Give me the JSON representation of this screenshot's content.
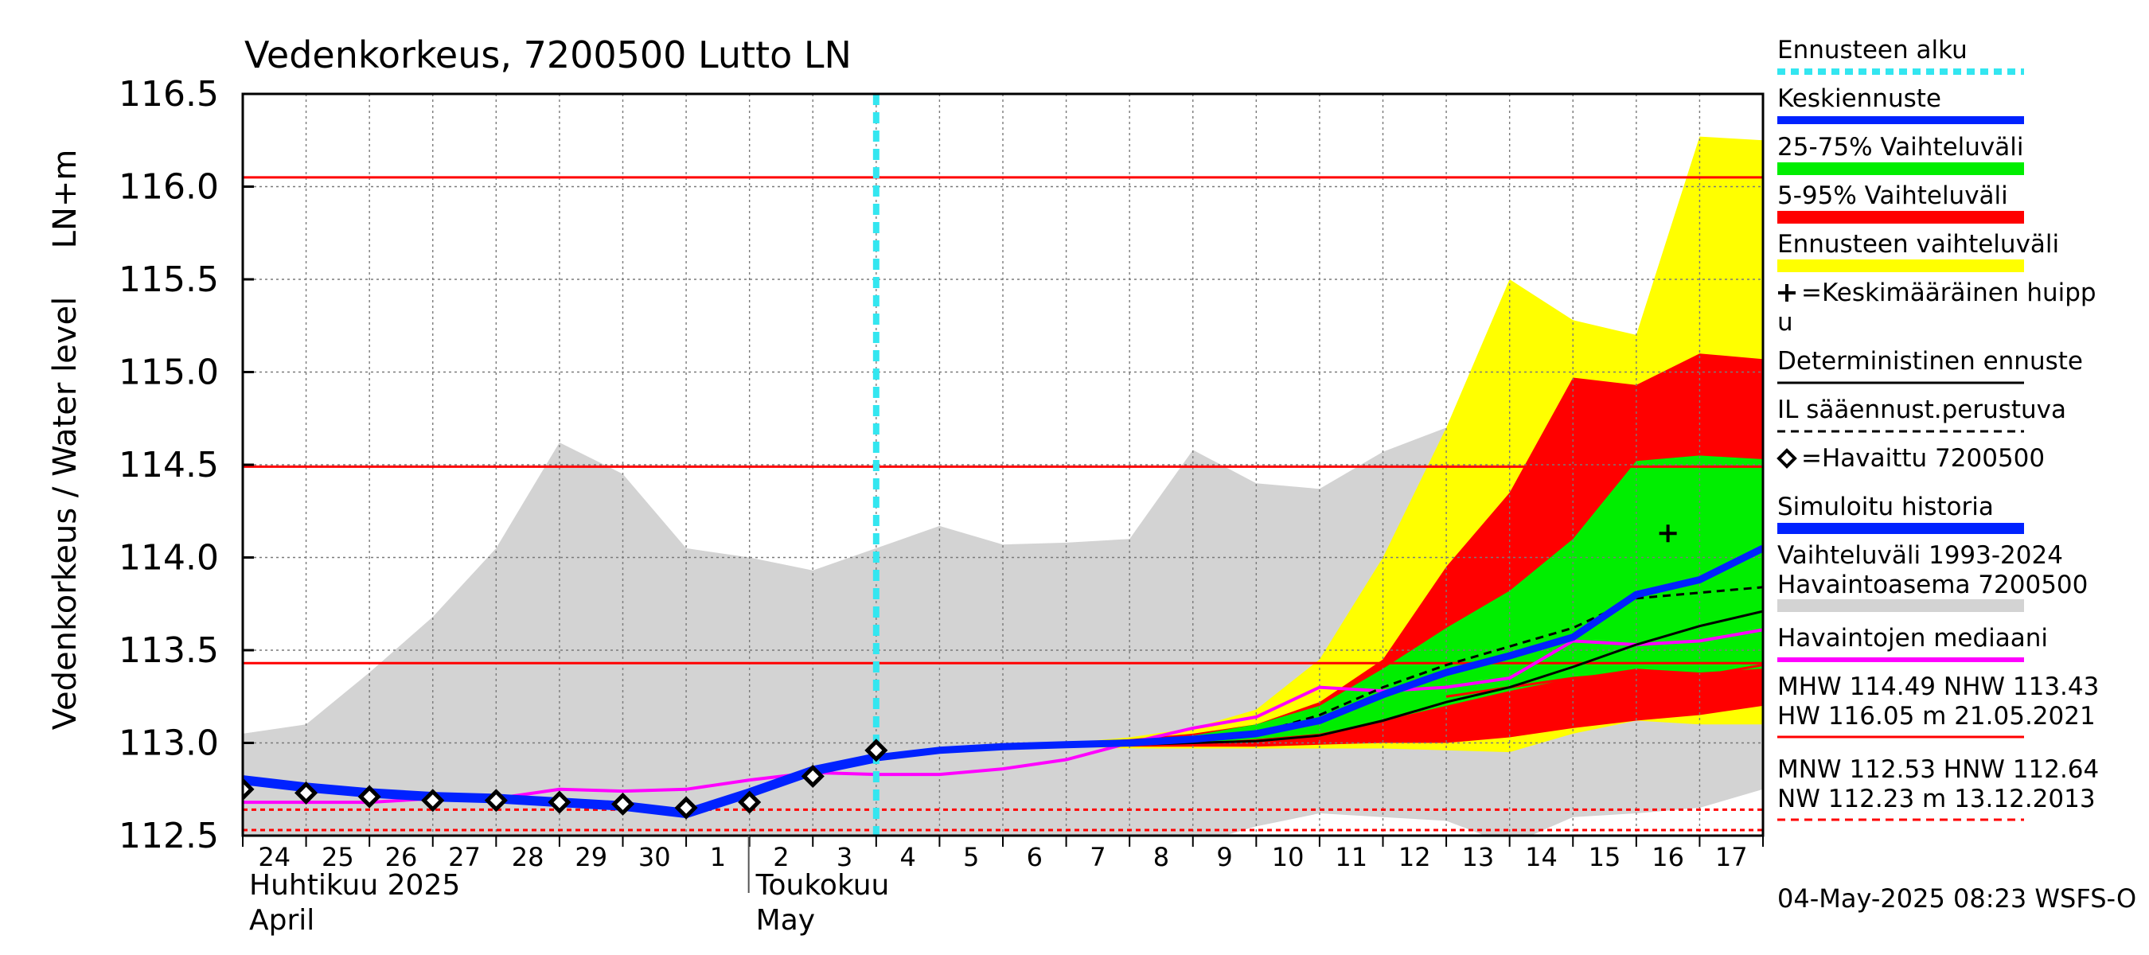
{
  "chart_data": {
    "type": "area",
    "title": "Vedenkorkeus, 7200500 Lutto LN",
    "ylabel_main": "Vedenkorkeus / Water level",
    "ylabel_unit": "LN+m",
    "ylim": [
      112.5,
      116.5
    ],
    "yticks": [
      "112.5",
      "113.0",
      "113.5",
      "114.0",
      "114.5",
      "115.0",
      "115.5",
      "116.0",
      "116.5"
    ],
    "xlim": [
      0,
      24
    ],
    "xtick_labels": [
      "24",
      "25",
      "26",
      "27",
      "28",
      "29",
      "30",
      "1",
      "2",
      "3",
      "4",
      "5",
      "6",
      "7",
      "8",
      "9",
      "10",
      "11",
      "12",
      "13",
      "14",
      "15",
      "16",
      "17"
    ],
    "month_labels": [
      {
        "fi": "Huhtikuu  2025",
        "en": "April",
        "day": 0
      },
      {
        "fi": "Toukokuu",
        "en": "May",
        "day": 8
      }
    ],
    "forecast_start": 10,
    "reference_lines": [
      {
        "name": "HW",
        "value": 116.05
      },
      {
        "name": "MHW",
        "value": 114.49
      },
      {
        "name": "NHW",
        "value": 113.43
      },
      {
        "name": "MNW",
        "value": 112.53
      },
      {
        "name": "HNW",
        "value": 112.64
      },
      {
        "name": "NW",
        "value": 112.23
      }
    ],
    "series": [
      {
        "name": "Vaihteluväli 1993-2024 (upper)",
        "x": [
          0,
          1,
          2,
          3,
          4,
          5,
          6,
          7,
          8,
          9,
          10,
          11,
          12,
          13,
          14,
          15,
          16,
          17,
          18,
          19,
          20,
          21,
          22,
          23,
          24
        ],
        "values": [
          113.05,
          113.1,
          113.38,
          113.68,
          114.05,
          114.62,
          114.45,
          114.05,
          114.0,
          113.93,
          114.05,
          114.17,
          114.07,
          114.08,
          114.1,
          114.58,
          114.4,
          114.37,
          114.57,
          114.7,
          114.48,
          114.55,
          114.42,
          114.95,
          115.4
        ]
      },
      {
        "name": "Vaihteluväli 1993-2024 (lower)",
        "x": [
          0,
          1,
          2,
          3,
          4,
          5,
          6,
          7,
          8,
          9,
          10,
          11,
          12,
          13,
          14,
          15,
          16,
          17,
          18,
          19,
          20,
          21,
          22,
          23,
          24
        ],
        "values": [
          112.45,
          112.45,
          112.45,
          112.45,
          112.45,
          112.45,
          112.45,
          112.45,
          112.45,
          112.45,
          112.45,
          112.45,
          112.45,
          112.45,
          112.45,
          112.45,
          112.55,
          112.62,
          112.6,
          112.58,
          112.45,
          112.6,
          112.62,
          112.65,
          112.75
        ]
      },
      {
        "name": "Ennusteen vaihteluväli (upper)",
        "x": [
          13,
          14,
          15,
          16,
          17,
          18,
          19,
          20,
          21,
          22,
          23,
          24
        ],
        "values": [
          113.0,
          113.03,
          113.08,
          113.18,
          113.45,
          114.0,
          114.7,
          115.5,
          115.28,
          115.2,
          116.27,
          116.25
        ]
      },
      {
        "name": "Ennusteen vaihteluväli (lower)",
        "x": [
          13,
          14,
          15,
          16,
          17,
          18,
          19,
          20,
          21,
          22,
          23,
          24
        ],
        "values": [
          112.98,
          112.97,
          112.97,
          112.97,
          112.97,
          112.97,
          112.96,
          112.95,
          113.05,
          113.12,
          113.1,
          113.1
        ]
      },
      {
        "name": "5-95% (upper)",
        "x": [
          13,
          14,
          15,
          16,
          17,
          18,
          19,
          20,
          21,
          22,
          23,
          24
        ],
        "values": [
          113.0,
          113.02,
          113.05,
          113.1,
          113.22,
          113.45,
          113.95,
          114.35,
          114.97,
          114.93,
          115.1,
          115.07
        ]
      },
      {
        "name": "5-95% (lower)",
        "x": [
          13,
          14,
          15,
          16,
          17,
          18,
          19,
          20,
          21,
          22,
          23,
          24
        ],
        "values": [
          112.98,
          112.98,
          112.98,
          112.98,
          112.99,
          113.0,
          113.0,
          113.03,
          113.08,
          113.12,
          113.15,
          113.2
        ]
      },
      {
        "name": "25-75% (upper)",
        "x": [
          13,
          14,
          15,
          16,
          17,
          18,
          19,
          20,
          21,
          22,
          23,
          24
        ],
        "values": [
          112.99,
          113.01,
          113.04,
          113.1,
          113.2,
          113.4,
          113.62,
          113.82,
          114.1,
          114.52,
          114.55,
          114.53
        ]
      },
      {
        "name": "25-75% (lower)",
        "x": [
          13,
          14,
          15,
          16,
          17,
          18,
          19,
          20,
          21,
          22,
          23,
          24
        ],
        "values": [
          112.99,
          112.99,
          113.0,
          113.02,
          113.05,
          113.12,
          113.2,
          113.28,
          113.35,
          113.4,
          113.38,
          113.4
        ]
      },
      {
        "name": "Havaintojen mediaani",
        "x": [
          0,
          1,
          2,
          3,
          4,
          5,
          6,
          7,
          8,
          9,
          10,
          11,
          12,
          13,
          14,
          15,
          16,
          17,
          18,
          19,
          20,
          21,
          22,
          23,
          24
        ],
        "values": [
          112.68,
          112.68,
          112.68,
          112.7,
          112.7,
          112.75,
          112.74,
          112.75,
          112.8,
          112.84,
          112.83,
          112.83,
          112.86,
          112.91,
          113.0,
          113.08,
          113.14,
          113.3,
          113.28,
          113.3,
          113.35,
          113.55,
          113.53,
          113.55,
          113.61
        ]
      },
      {
        "name": "Simuloitu historia",
        "x": [
          0,
          1,
          2,
          3,
          4,
          5,
          6,
          7,
          8,
          9,
          10
        ],
        "values": [
          112.8,
          112.76,
          112.73,
          112.71,
          112.7,
          112.68,
          112.66,
          112.62,
          112.73,
          112.85,
          112.92
        ]
      },
      {
        "name": "Keskiennuste",
        "x": [
          10,
          11,
          12,
          13,
          14,
          15,
          16,
          17,
          18,
          19,
          20,
          21,
          22,
          23,
          24
        ],
        "values": [
          112.92,
          112.96,
          112.98,
          112.99,
          113.0,
          113.02,
          113.05,
          113.12,
          113.26,
          113.38,
          113.47,
          113.57,
          113.8,
          113.88,
          114.05
        ]
      },
      {
        "name": "Deterministinen ennuste",
        "x": [
          10,
          11,
          12,
          13,
          14,
          15,
          16,
          17,
          18,
          19,
          20,
          21,
          22,
          23,
          24
        ],
        "values": [
          112.92,
          112.96,
          112.98,
          112.99,
          112.99,
          113.0,
          113.01,
          113.04,
          113.12,
          113.22,
          113.3,
          113.41,
          113.53,
          113.63,
          113.71
        ]
      },
      {
        "name": "IL sääennust.perustuva",
        "x": [
          10,
          11,
          12,
          13,
          14,
          15,
          16,
          17,
          18,
          19,
          20,
          21,
          22,
          23,
          24
        ],
        "values": [
          112.92,
          112.96,
          112.98,
          112.99,
          113.0,
          113.02,
          113.05,
          113.15,
          113.3,
          113.42,
          113.52,
          113.62,
          113.78,
          113.81,
          113.84
        ]
      },
      {
        "name": "Havaittu 7200500",
        "x": [
          0,
          1,
          2,
          3,
          4,
          5,
          6,
          7,
          8,
          9,
          10
        ],
        "values": [
          112.75,
          112.73,
          112.71,
          112.69,
          112.69,
          112.68,
          112.67,
          112.65,
          112.68,
          112.82,
          112.96
        ]
      },
      {
        "name": "5-95% red lower inner",
        "x": [
          19,
          20,
          21,
          22,
          23,
          24
        ],
        "values": [
          113.25,
          113.3,
          113.35,
          113.38,
          113.36,
          113.42
        ]
      }
    ],
    "peak_marker": {
      "x": 22.5,
      "y": 114.13
    },
    "legend": [
      {
        "label": "Ennusteen alku",
        "color": "#33e6f0",
        "style": "dashed",
        "width": 8
      },
      {
        "label": "Keskiennuste",
        "color": "#0022ff",
        "style": "solid",
        "width": 10
      },
      {
        "label": "25-75% Vaihteluväli",
        "color": "#00ee00",
        "style": "solid",
        "width": 16
      },
      {
        "label": "5-95% Vaihteluväli",
        "color": "#ff0000",
        "style": "solid",
        "width": 16
      },
      {
        "label": "Ennusteen vaihteluväli",
        "color": "#ffff00",
        "style": "solid",
        "width": 16
      },
      {
        "label": "=Keskimääräinen huipp",
        "label2": "u",
        "marker": "plus"
      },
      {
        "label": "Deterministinen ennuste",
        "color": "#000000",
        "style": "solid",
        "width": 3
      },
      {
        "label": "IL sääennust.perustuva",
        "color": "#000000",
        "style": "dashed",
        "width": 3
      },
      {
        "label": "=Havaittu 7200500",
        "marker": "diamond"
      },
      {
        "label": "Simuloitu historia",
        "color": "#0022ff",
        "style": "solid",
        "width": 14
      },
      {
        "label": "Vaihteluväli 1993-2024",
        "label2": " Havaintoasema 7200500",
        "color": "#d3d3d3",
        "style": "solid",
        "width": 16
      },
      {
        "label": "Havaintojen mediaani",
        "color": "#ff00ff",
        "style": "solid",
        "width": 6
      },
      {
        "label": "MHW 114.49 NHW 113.43",
        "label2": "HW 116.05 m 21.05.2021",
        "color": "#ff0000",
        "style": "solid",
        "width": 3
      },
      {
        "label": "MNW 112.53 HNW 112.64",
        "label2": "NW 112.23 m 13.12.2013",
        "color": "#ff0000",
        "style": "dashed",
        "width": 3
      }
    ],
    "footer": "04-May-2025 08:23 WSFS-O"
  }
}
